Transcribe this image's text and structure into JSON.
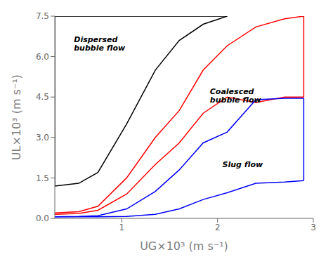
{
  "chart_data": {
    "type": "line",
    "xlabel": "UG×10³ (m s⁻¹)",
    "ylabel": "UL×10³ (m s⁻¹)",
    "xlim": [
      0.3,
      3.0
    ],
    "ylim": [
      0.0,
      7.5
    ],
    "xticks": [
      1,
      2,
      3
    ],
    "yticks": [
      {
        "value": 0.0,
        "label": "0.0"
      },
      1.5,
      {
        "value": 3.0,
        "label": "3.0"
      },
      4.5,
      {
        "value": 6.0,
        "label": "6.0"
      },
      7.5
    ],
    "grid": false,
    "series": [
      {
        "color": "black",
        "x": [
          0.3,
          0.55,
          0.75,
          1.05,
          1.35,
          1.6,
          1.85,
          2.1
        ],
        "values": [
          1.2,
          1.3,
          1.7,
          3.5,
          5.5,
          6.6,
          7.2,
          7.5
        ]
      },
      {
        "color": "black",
        "x": [
          0.3,
          0.3
        ],
        "values": [
          1.2,
          7.5
        ]
      },
      {
        "color": "black",
        "x": [
          0.3,
          2.1
        ],
        "values": [
          7.5,
          7.5
        ]
      },
      {
        "color": "red",
        "x": [
          0.3,
          0.55,
          0.75,
          1.05,
          1.35,
          1.6,
          1.85,
          2.1,
          2.4,
          2.7,
          2.9
        ],
        "values": [
          0.2,
          0.25,
          0.45,
          1.5,
          3.0,
          4.0,
          5.5,
          6.4,
          7.1,
          7.4,
          7.5
        ]
      },
      {
        "color": "red",
        "x": [
          0.3,
          0.55,
          0.75,
          1.05,
          1.35,
          1.6,
          1.85,
          2.1,
          2.4,
          2.7,
          2.9
        ],
        "values": [
          0.15,
          0.18,
          0.3,
          0.9,
          2.0,
          2.8,
          3.9,
          4.5,
          4.3,
          4.5,
          4.5
        ]
      },
      {
        "color": "red",
        "x": [
          2.9,
          2.9
        ],
        "values": [
          4.5,
          7.5
        ]
      },
      {
        "color": "blue",
        "x": [
          0.3,
          0.55,
          0.75,
          1.05,
          1.35,
          1.6,
          1.85,
          2.1,
          2.4,
          2.7,
          2.9
        ],
        "values": [
          0.06,
          0.07,
          0.1,
          0.35,
          1.0,
          1.8,
          2.8,
          3.2,
          4.4,
          4.45,
          4.45
        ]
      },
      {
        "color": "blue",
        "x": [
          0.3,
          0.55,
          0.75,
          1.05,
          1.35,
          1.6,
          1.85,
          2.1,
          2.4,
          2.7,
          2.9
        ],
        "values": [
          0.06,
          0.06,
          0.06,
          0.07,
          0.15,
          0.35,
          0.7,
          0.95,
          1.3,
          1.35,
          1.4
        ]
      },
      {
        "color": "blue",
        "x": [
          2.9,
          2.9
        ],
        "values": [
          1.4,
          4.45
        ]
      }
    ],
    "annotations": [
      {
        "text": "Dispersed\nbubble flow",
        "x": 0.5,
        "y": 6.8
      },
      {
        "text": "Coalesced\nbubble flow",
        "x": 1.92,
        "y": 4.55
      },
      {
        "text": "Slug flow",
        "x": 2.05,
        "y": 2.0
      }
    ]
  }
}
